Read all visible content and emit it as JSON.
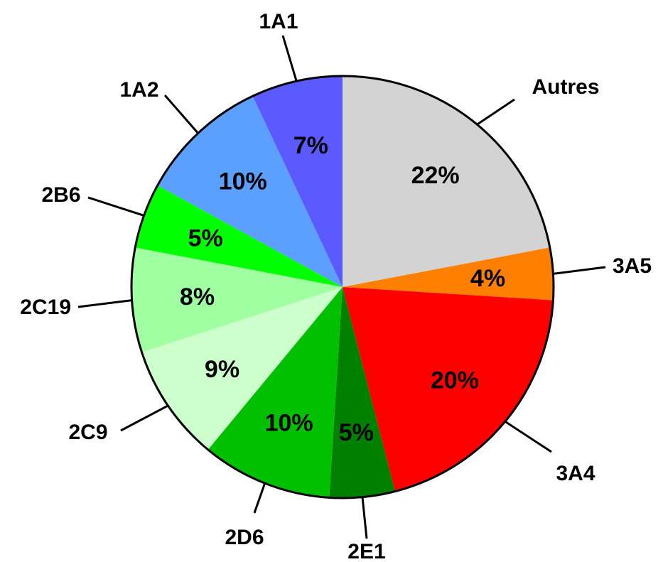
{
  "chart_data": {
    "type": "pie",
    "title": "",
    "start": "12 o'clock",
    "direction": "clockwise",
    "slices": [
      {
        "name": "Autres",
        "value": 22,
        "label": "22%",
        "color": "#D3D3D3"
      },
      {
        "name": "3A5",
        "value": 4,
        "label": "4%",
        "color": "#FF8000"
      },
      {
        "name": "3A4",
        "value": 20,
        "label": "20%",
        "color": "#FF0000"
      },
      {
        "name": "2E1",
        "value": 5,
        "label": "5%",
        "color": "#008000"
      },
      {
        "name": "2D6",
        "value": 10,
        "label": "10%",
        "color": "#00C000"
      },
      {
        "name": "2C9",
        "value": 9,
        "label": "9%",
        "color": "#CCFFCC"
      },
      {
        "name": "2C19",
        "value": 8,
        "label": "8%",
        "color": "#A0FFA0"
      },
      {
        "name": "2B6",
        "value": 5,
        "label": "5%",
        "color": "#00FF00"
      },
      {
        "name": "1A2",
        "value": 10,
        "label": "10%",
        "color": "#5CA0FF"
      },
      {
        "name": "1A1",
        "value": 7,
        "label": "7%",
        "color": "#5A5AFF"
      }
    ]
  }
}
